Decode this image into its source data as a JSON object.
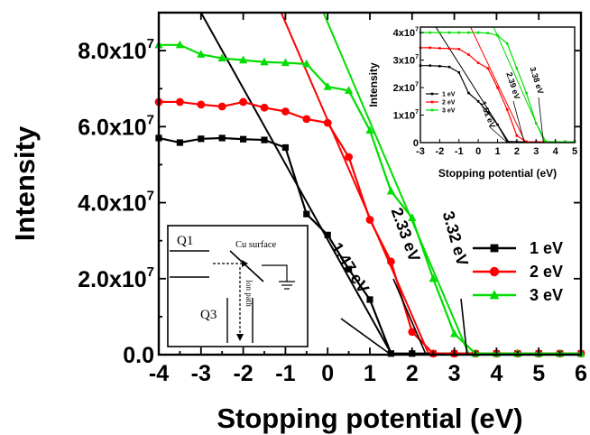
{
  "chart_data": [
    {
      "type": "line",
      "xlabel": "Stopping potential (eV)",
      "ylabel": "Intensity",
      "xlim": [
        -4,
        6
      ],
      "ylim": [
        0,
        90000000
      ],
      "xticks": [
        "-4",
        "-3",
        "-2",
        "-1",
        "0",
        "1",
        "2",
        "3",
        "4",
        "5",
        "6"
      ],
      "yticks": [
        {
          "base": "0.0",
          "exp": ""
        },
        {
          "base": "2.0x10",
          "exp": "7"
        },
        {
          "base": "4.0x10",
          "exp": "7"
        },
        {
          "base": "6.0x10",
          "exp": "7"
        },
        {
          "base": "8.0x10",
          "exp": "7"
        }
      ],
      "legend_position": "right",
      "series": [
        {
          "name": "1 eV",
          "color": "#000000",
          "marker": "square",
          "x": [
            -4,
            -3.5,
            -3,
            -2.5,
            -2,
            -1.5,
            -1,
            -0.5,
            0,
            0.5,
            1,
            1.5,
            2,
            2.5,
            3,
            3.5,
            4,
            4.5,
            5,
            5.5,
            6
          ],
          "y": [
            57000000,
            55800000,
            56800000,
            57000000,
            56700000,
            56500000,
            54500000,
            37000000,
            31500000,
            22500000,
            14500000,
            300000,
            300000,
            300000,
            300000,
            300000,
            300000,
            300000,
            300000,
            300000,
            300000
          ],
          "fit": {
            "x": [
              -3,
              1.52
            ],
            "y": [
              90000000,
              0
            ]
          },
          "threshold_label": "1.47 eV"
        },
        {
          "name": "2 eV",
          "color": "#ff0000",
          "marker": "circle",
          "x": [
            -4,
            -3.5,
            -3,
            -2.5,
            -2,
            -1.5,
            -1,
            -0.5,
            0,
            0.5,
            1,
            1.5,
            2,
            2.5,
            3,
            3.5,
            4,
            4.5,
            5,
            5.5,
            6
          ],
          "y": [
            66500000,
            66500000,
            65800000,
            65300000,
            66500000,
            65000000,
            64000000,
            62000000,
            61000000,
            52000000,
            35500000,
            24500000,
            6000000,
            300000,
            300000,
            300000,
            300000,
            300000,
            300000,
            300000,
            300000
          ],
          "fit": {
            "x": [
              -1.1,
              2.4
            ],
            "y": [
              90000000,
              0
            ]
          },
          "threshold_label": "2.33 eV"
        },
        {
          "name": "3 eV",
          "color": "#00dd00",
          "marker": "triangle",
          "x": [
            -4,
            -3.5,
            -3,
            -2.5,
            -2,
            -1.5,
            -1,
            -0.5,
            0,
            0.5,
            1,
            1.5,
            2,
            2.5,
            3,
            3.5,
            4,
            4.5,
            5,
            5.5,
            6
          ],
          "y": [
            81500000,
            81500000,
            79000000,
            78000000,
            77500000,
            77000000,
            76800000,
            76500000,
            70500000,
            69500000,
            59000000,
            43000000,
            36000000,
            20000000,
            5500000,
            300000,
            300000,
            300000,
            300000,
            300000,
            300000
          ],
          "fit": {
            "x": [
              -0.1,
              3.35
            ],
            "y": [
              90000000,
              0
            ]
          },
          "threshold_label": "3.32 eV"
        }
      ]
    },
    {
      "type": "line",
      "position": "inset-top-right",
      "xlabel": "Stopping potential (eV)",
      "ylabel": "Intensity",
      "xlim": [
        -3,
        5
      ],
      "ylim": [
        0,
        42000000
      ],
      "xticks": [
        "-3",
        "-2",
        "-1",
        "0",
        "1",
        "2",
        "3",
        "4",
        "5"
      ],
      "yticks": [
        {
          "base": "0",
          "exp": ""
        },
        {
          "base": "1x10",
          "exp": "7"
        },
        {
          "base": "2x10",
          "exp": "7"
        },
        {
          "base": "3x10",
          "exp": "7"
        },
        {
          "base": "4x10",
          "exp": "7"
        }
      ],
      "legend_position": "bottom-left",
      "series": [
        {
          "name": "1 eV",
          "color": "#000000",
          "x": [
            -3,
            -2.5,
            -2,
            -1.5,
            -1,
            -0.5,
            0,
            0.5,
            1,
            1.5,
            2,
            2.5,
            3,
            3.5,
            4,
            4.5,
            5
          ],
          "y": [
            28000000,
            28000000,
            27800000,
            27500000,
            25500000,
            18000000,
            15000000,
            11000000,
            6500000,
            400000,
            300000,
            300000,
            300000,
            300000,
            300000,
            300000,
            300000
          ],
          "fit": {
            "x": [
              -2.2,
              1.6
            ],
            "y": [
              42000000,
              0
            ]
          },
          "threshold_label": "1.51 eV"
        },
        {
          "name": "2 eV",
          "color": "#ff0000",
          "x": [
            -3,
            -2.5,
            -2,
            -1.5,
            -1,
            -0.5,
            0,
            0.5,
            1,
            1.5,
            2,
            2.5,
            3,
            3.5,
            4,
            4.5,
            5
          ],
          "y": [
            34500000,
            34500000,
            34300000,
            34200000,
            34000000,
            32000000,
            29000000,
            27000000,
            20000000,
            12000000,
            2500000,
            300000,
            300000,
            300000,
            300000,
            300000,
            300000
          ],
          "fit": {
            "x": [
              -0.4,
              2.45
            ],
            "y": [
              42000000,
              0
            ]
          },
          "threshold_label": "2.39 eV"
        },
        {
          "name": "3 eV",
          "color": "#00dd00",
          "x": [
            -3,
            -2.5,
            -2,
            -1.5,
            -1,
            -0.5,
            0,
            0.5,
            1,
            1.5,
            2,
            2.5,
            3,
            3.5,
            4,
            4.5,
            5
          ],
          "y": [
            40000000,
            40000000,
            40000000,
            40000000,
            40000000,
            40000000,
            40000000,
            39800000,
            39000000,
            36000000,
            27000000,
            18000000,
            7000000,
            400000,
            300000,
            300000,
            300000
          ],
          "fit": {
            "x": [
              0.8,
              3.45
            ],
            "y": [
              42000000,
              0
            ]
          },
          "threshold_label": "3.38 eV"
        }
      ]
    }
  ],
  "schematic": {
    "q1_label": "Q1",
    "q3_label": "Q3",
    "surface_label": "Cu surface",
    "ion_path_label": "Ion path"
  }
}
